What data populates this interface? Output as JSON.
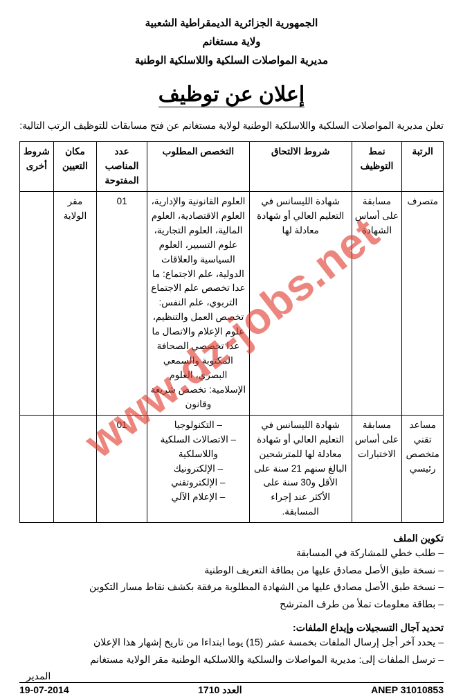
{
  "watermark": "www.dz-jobs.net",
  "header": {
    "line1": "الجمهورية الجزائرية الديمقراطية الشعبية",
    "line2": "ولاية مستغانم",
    "line3": "مديرية المواصلات السلكية واللاسلكية الوطنية"
  },
  "title": "إعلان عن توظيف",
  "intro": "تعلن مديرية المواصلات السلكية واللاسلكية الوطنية لولاية مستغانم عن فتح مسابقات للتوظيف الرتب التالية:",
  "table": {
    "headers": {
      "rank": "الرتبة",
      "mode": "نمط التوظيف",
      "cond": "شروط الالتحاق",
      "spec": "التخصص المطلوب",
      "count": "عدد المناصب المفتوحة",
      "place": "مكان التعيين",
      "other": "شروط أخرى"
    },
    "rows": [
      {
        "rank": "متصرف",
        "mode": "مسابقة على أساس الشهادة",
        "cond": "شهادة الليسانس في التعليم العالي أو شهادة معادلة لها",
        "spec": "العلوم القانونية والإدارية، العلوم الاقتصادية، العلوم المالية، العلوم التجارية، علوم التسيير، العلوم السياسية والعلاقات الدولية، علم الاجتماع: ما عدا تخصص علم الاجتماع التربوي، علم النفس: تخصص العمل والتنظيم، علوم الإعلام والاتصال ما عدا تخصصي الصحافة المكتوبة والسمعي البصري، العلوم الإسلامية: تخصص شريعة وقانون",
        "count": "01",
        "place": "مقر الولاية",
        "other": ""
      },
      {
        "rank": "مساعد تقني متخصص رئيسي",
        "mode": "مسابقة على أساس الاختبارات",
        "cond": "شهادة الليسانس في التعليم العالي أو شهادة معادلة لها للمترشحين البالغ سنهم 21 سنة على الأقل و30 سنة على الأكثر عند إجراء المسابقة.",
        "spec": "– التكنولوجيا\n– الاتصالات السلكية واللاسلكية\n– الإلكترونيك\n– الإلكتروتقني\n– الإعلام الآلي",
        "count": "01",
        "place": "",
        "other": ""
      }
    ]
  },
  "dossier": {
    "title": "تكوين الملف",
    "items": [
      "طلب خطي للمشاركة في المسابقة",
      "نسخة طبق الأصل مصادق عليها من بطاقة التعريف الوطنية",
      "نسخة طبق الأصل مصادق عليها من الشهادة المطلوبة مرفقة بكشف نقاط مسار التكوين",
      "بطاقة معلومات تملأ من طرف المترشح"
    ]
  },
  "deadline": {
    "title": "تحديد آجال التسجيلات وإيداع الملفات:",
    "items": [
      "يحدد آخر أجل إرسال الملفات بخمسة عشر (15) يوما ابتداءا من تاريخ إشهار هذا الإعلان",
      "ترسل الملفات إلى: مديرية المواصلات والسلكية واللاسلكية الوطنية مقر الولاية مستغانم"
    ]
  },
  "signature": "المدير",
  "footer": {
    "anep": "ANEP 31010853",
    "issue": "العدد 1710",
    "date": "19-07-2014"
  }
}
